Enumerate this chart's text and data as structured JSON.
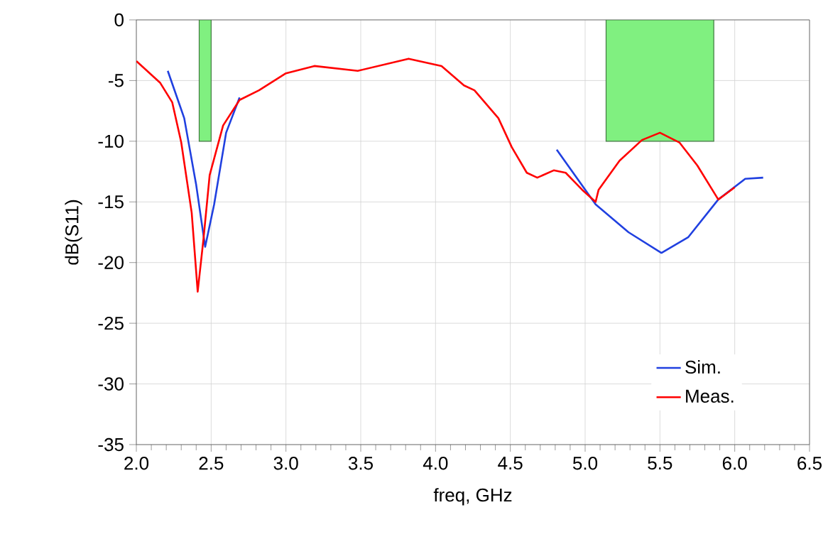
{
  "chart_data": {
    "type": "line",
    "xlabel": "freq, GHz",
    "ylabel": "dB(S11)",
    "xlim": [
      2.0,
      6.5
    ],
    "ylim": [
      -35,
      0
    ],
    "xticks": [
      {
        "value": 2.0,
        "label": "2.0"
      },
      {
        "value": 2.5,
        "label": "2.5"
      },
      {
        "value": 3.0,
        "label": "3.0"
      },
      {
        "value": 3.5,
        "label": "3.5"
      },
      {
        "value": 4.0,
        "label": "4.0"
      },
      {
        "value": 4.5,
        "label": "4.5"
      },
      {
        "value": 5.0,
        "label": "5.0"
      },
      {
        "value": 5.5,
        "label": "5.5"
      },
      {
        "value": 6.0,
        "label": "6.0"
      },
      {
        "value": 6.5,
        "label": "6.5"
      }
    ],
    "yticks": [
      -35,
      -30,
      -25,
      -20,
      -15,
      -10,
      -5,
      0
    ],
    "grid": true,
    "legend": "bottom right",
    "series": [
      {
        "type": "area",
        "color": "#80f080",
        "x": [
          2.42,
          2.42,
          2.5,
          2.5
        ],
        "values": [
          -10,
          0,
          0,
          -10
        ]
      },
      {
        "type": "area",
        "color": "#80f080",
        "x": [
          5.14,
          5.14,
          5.86,
          5.86
        ],
        "values": [
          -10,
          0,
          0,
          -10
        ]
      },
      {
        "name": "Sim.",
        "color": "#2040e0",
        "x": [
          2.21,
          2.32,
          2.4,
          2.46,
          2.52,
          2.6,
          2.69,
          null,
          4.81,
          5.07,
          5.29,
          5.51,
          5.69,
          5.89,
          6.07,
          6.19
        ],
        "values": [
          -4.2,
          -8.1,
          -13.6,
          -18.7,
          -15.2,
          -9.3,
          -6.4,
          null,
          -10.7,
          -15.2,
          -17.5,
          -19.2,
          -17.9,
          -14.8,
          -13.1,
          -13.0
        ]
      },
      {
        "name": "Meas.",
        "color": "#ff0000",
        "x": [
          2.0,
          2.16,
          2.24,
          2.3,
          2.37,
          2.41,
          2.45,
          2.49,
          2.58,
          2.69,
          2.82,
          3.0,
          3.19,
          3.48,
          3.82,
          4.04,
          4.19,
          4.26,
          4.42,
          4.51,
          4.61,
          4.68,
          4.79,
          4.87,
          4.98,
          5.07,
          5.09,
          5.23,
          5.38,
          5.5,
          5.63,
          5.75,
          5.89,
          6.0
        ],
        "values": [
          -3.4,
          -5.2,
          -6.8,
          -10.1,
          -15.9,
          -22.4,
          -17.9,
          -12.8,
          -8.7,
          -6.6,
          -5.8,
          -4.4,
          -3.8,
          -4.2,
          -3.2,
          -3.8,
          -5.4,
          -5.8,
          -8.1,
          -10.5,
          -12.6,
          -13.0,
          -12.4,
          -12.6,
          -14.0,
          -15.0,
          -14.0,
          -11.6,
          -9.9,
          -9.3,
          -10.1,
          -12.0,
          -14.8,
          -13.8
        ]
      }
    ]
  }
}
